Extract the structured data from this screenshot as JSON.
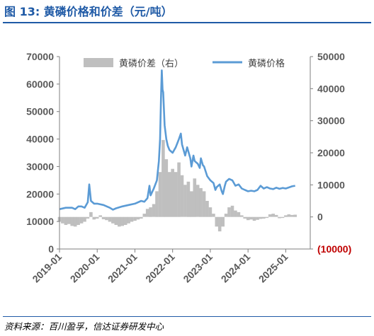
{
  "title": "图 13:  黄磷价格和价差（元/吨）",
  "source": "资料来源：百川盈孚，信达证券研发中心",
  "colors": {
    "title": "#1f5aa6",
    "price_line": "#5b9bd5",
    "spread_bar": "#bfbfbf",
    "negative_tick": "#c00000",
    "tick_text": "#595959"
  },
  "chart_data": {
    "type": "bar+line",
    "title": "",
    "legend": {
      "placement": "top",
      "entries": [
        "黄磷价差（右）",
        "黄磷价格"
      ]
    },
    "left_axis": {
      "ylim": [
        0,
        70000
      ],
      "ticks": [
        "0",
        "10000",
        "20000",
        "30000",
        "40000",
        "50000",
        "60000",
        "70000"
      ]
    },
    "right_axis": {
      "ylim": [
        -10000,
        50000
      ],
      "ticks": [
        "(10000)",
        "0",
        "10000",
        "20000",
        "30000",
        "40000",
        "50000"
      ]
    },
    "x_axis": {
      "range": [
        "2019-01",
        "2025-04"
      ],
      "ticks": [
        "2019-01",
        "2020-01",
        "2021-01",
        "2022-01",
        "2023-01",
        "2024-01",
        "2025-01"
      ]
    },
    "grid": false,
    "series": [
      {
        "name": "黄磷价格",
        "kind": "line",
        "axis": "left",
        "points": [
          [
            "2019-01",
            14500
          ],
          [
            "2019-03",
            15000
          ],
          [
            "2019-05",
            15000
          ],
          [
            "2019-06",
            14500
          ],
          [
            "2019-07",
            15500
          ],
          [
            "2019-08",
            15500
          ],
          [
            "2019-09",
            15000
          ],
          [
            "2019-10",
            17000
          ],
          [
            "2019-10-15",
            23500
          ],
          [
            "2019-11",
            17500
          ],
          [
            "2019-12",
            16500
          ],
          [
            "2020-01",
            16500
          ],
          [
            "2020-03",
            16000
          ],
          [
            "2020-05",
            15000
          ],
          [
            "2020-06",
            14300
          ],
          [
            "2020-07",
            14800
          ],
          [
            "2020-09",
            15500
          ],
          [
            "2020-11",
            16000
          ],
          [
            "2021-01",
            16500
          ],
          [
            "2021-03",
            17500
          ],
          [
            "2021-04",
            17200
          ],
          [
            "2021-05",
            18500
          ],
          [
            "2021-05-20",
            23000
          ],
          [
            "2021-06",
            19500
          ],
          [
            "2021-07",
            22000
          ],
          [
            "2021-08",
            25000
          ],
          [
            "2021-08-20",
            32000
          ],
          [
            "2021-09-01",
            40000
          ],
          [
            "2021-09-10",
            55000
          ],
          [
            "2021-09-18",
            65000
          ],
          [
            "2021-09-25",
            58000
          ],
          [
            "2021-10",
            57000
          ],
          [
            "2021-10-15",
            45000
          ],
          [
            "2021-11",
            40000
          ],
          [
            "2021-11-15",
            37500
          ],
          [
            "2021-12",
            36000
          ],
          [
            "2022-01",
            35000
          ],
          [
            "2022-02",
            37000
          ],
          [
            "2022-03",
            40000
          ],
          [
            "2022-03-20",
            42000
          ],
          [
            "2022-04",
            38000
          ],
          [
            "2022-05",
            34000
          ],
          [
            "2022-05-20",
            37000
          ],
          [
            "2022-06",
            35500
          ],
          [
            "2022-06-20",
            33000
          ],
          [
            "2022-07",
            30000
          ],
          [
            "2022-07-20",
            34000
          ],
          [
            "2022-08",
            32000
          ],
          [
            "2022-09",
            31000
          ],
          [
            "2022-09-20",
            29500
          ],
          [
            "2022-10",
            33000
          ],
          [
            "2022-10-20",
            30500
          ],
          [
            "2022-11",
            30000
          ],
          [
            "2022-12",
            26500
          ],
          [
            "2023-01",
            25000
          ],
          [
            "2023-02",
            24000
          ],
          [
            "2023-02-20",
            21500
          ],
          [
            "2023-03",
            22500
          ],
          [
            "2023-04",
            23500
          ],
          [
            "2023-04-20",
            21000
          ],
          [
            "2023-05",
            20000
          ],
          [
            "2023-05-20",
            23000
          ],
          [
            "2023-06",
            24500
          ],
          [
            "2023-07",
            25500
          ],
          [
            "2023-08",
            25000
          ],
          [
            "2023-09",
            23000
          ],
          [
            "2023-10",
            23500
          ],
          [
            "2023-11",
            22000
          ],
          [
            "2023-12",
            21500
          ],
          [
            "2024-01",
            21000
          ],
          [
            "2024-02",
            21200
          ],
          [
            "2024-03",
            21000
          ],
          [
            "2024-04",
            21500
          ],
          [
            "2024-05",
            23000
          ],
          [
            "2024-06",
            22000
          ],
          [
            "2024-07",
            22500
          ],
          [
            "2024-08",
            22000
          ],
          [
            "2024-09",
            21800
          ],
          [
            "2024-10",
            22300
          ],
          [
            "2024-11",
            21900
          ],
          [
            "2024-12",
            22200
          ],
          [
            "2025-01",
            22000
          ],
          [
            "2025-02",
            22400
          ],
          [
            "2025-03",
            22800
          ],
          [
            "2025-04",
            23000
          ]
        ]
      },
      {
        "name": "黄磷价差（右）",
        "kind": "bar",
        "axis": "right",
        "points": [
          [
            "2019-01",
            -1500
          ],
          [
            "2019-02",
            -2000
          ],
          [
            "2019-03",
            -2500
          ],
          [
            "2019-04",
            -2200
          ],
          [
            "2019-05",
            -2800
          ],
          [
            "2019-06",
            -3000
          ],
          [
            "2019-07",
            -2500
          ],
          [
            "2019-08",
            -2000
          ],
          [
            "2019-09",
            -1500
          ],
          [
            "2019-10",
            -500
          ],
          [
            "2019-11",
            1500
          ],
          [
            "2019-12",
            -800
          ],
          [
            "2020-01",
            -500
          ],
          [
            "2020-02",
            500
          ],
          [
            "2020-03",
            -700
          ],
          [
            "2020-04",
            -1000
          ],
          [
            "2020-05",
            -1500
          ],
          [
            "2020-06",
            -2000
          ],
          [
            "2020-07",
            -2500
          ],
          [
            "2020-08",
            -3000
          ],
          [
            "2020-09",
            -2800
          ],
          [
            "2020-10",
            -2500
          ],
          [
            "2020-11",
            -2000
          ],
          [
            "2020-12",
            -1500
          ],
          [
            "2021-01",
            -1200
          ],
          [
            "2021-02",
            -800
          ],
          [
            "2021-03",
            -500
          ],
          [
            "2021-04",
            1000
          ],
          [
            "2021-05",
            2500
          ],
          [
            "2021-06",
            3000
          ],
          [
            "2021-07",
            4000
          ],
          [
            "2021-08",
            8000
          ],
          [
            "2021-09",
            14000
          ],
          [
            "2021-10",
            24000
          ],
          [
            "2021-11",
            18000
          ],
          [
            "2021-12",
            14000
          ],
          [
            "2022-01",
            15000
          ],
          [
            "2022-02",
            14000
          ],
          [
            "2022-03",
            17000
          ],
          [
            "2022-04",
            13000
          ],
          [
            "2022-05",
            10000
          ],
          [
            "2022-06",
            11000
          ],
          [
            "2022-07",
            8000
          ],
          [
            "2022-08",
            12000
          ],
          [
            "2022-09",
            10000
          ],
          [
            "2022-10",
            9000
          ],
          [
            "2022-11",
            8000
          ],
          [
            "2022-12",
            5000
          ],
          [
            "2023-01",
            3000
          ],
          [
            "2023-02",
            1000
          ],
          [
            "2023-03",
            -3000
          ],
          [
            "2023-04",
            -4500
          ],
          [
            "2023-05",
            -3000
          ],
          [
            "2023-06",
            1000
          ],
          [
            "2023-07",
            3000
          ],
          [
            "2023-08",
            3500
          ],
          [
            "2023-09",
            2000
          ],
          [
            "2023-10",
            1500
          ],
          [
            "2023-11",
            500
          ],
          [
            "2023-12",
            -500
          ],
          [
            "2024-01",
            -1000
          ],
          [
            "2024-02",
            -800
          ],
          [
            "2024-03",
            -1200
          ],
          [
            "2024-04",
            -900
          ],
          [
            "2024-05",
            -600
          ],
          [
            "2024-06",
            -500
          ],
          [
            "2024-07",
            -300
          ],
          [
            "2024-08",
            800
          ],
          [
            "2024-09",
            1000
          ],
          [
            "2024-10",
            600
          ],
          [
            "2024-11",
            -400
          ],
          [
            "2024-12",
            -300
          ],
          [
            "2025-01",
            500
          ],
          [
            "2025-02",
            800
          ],
          [
            "2025-03",
            600
          ],
          [
            "2025-04",
            700
          ]
        ]
      }
    ]
  }
}
